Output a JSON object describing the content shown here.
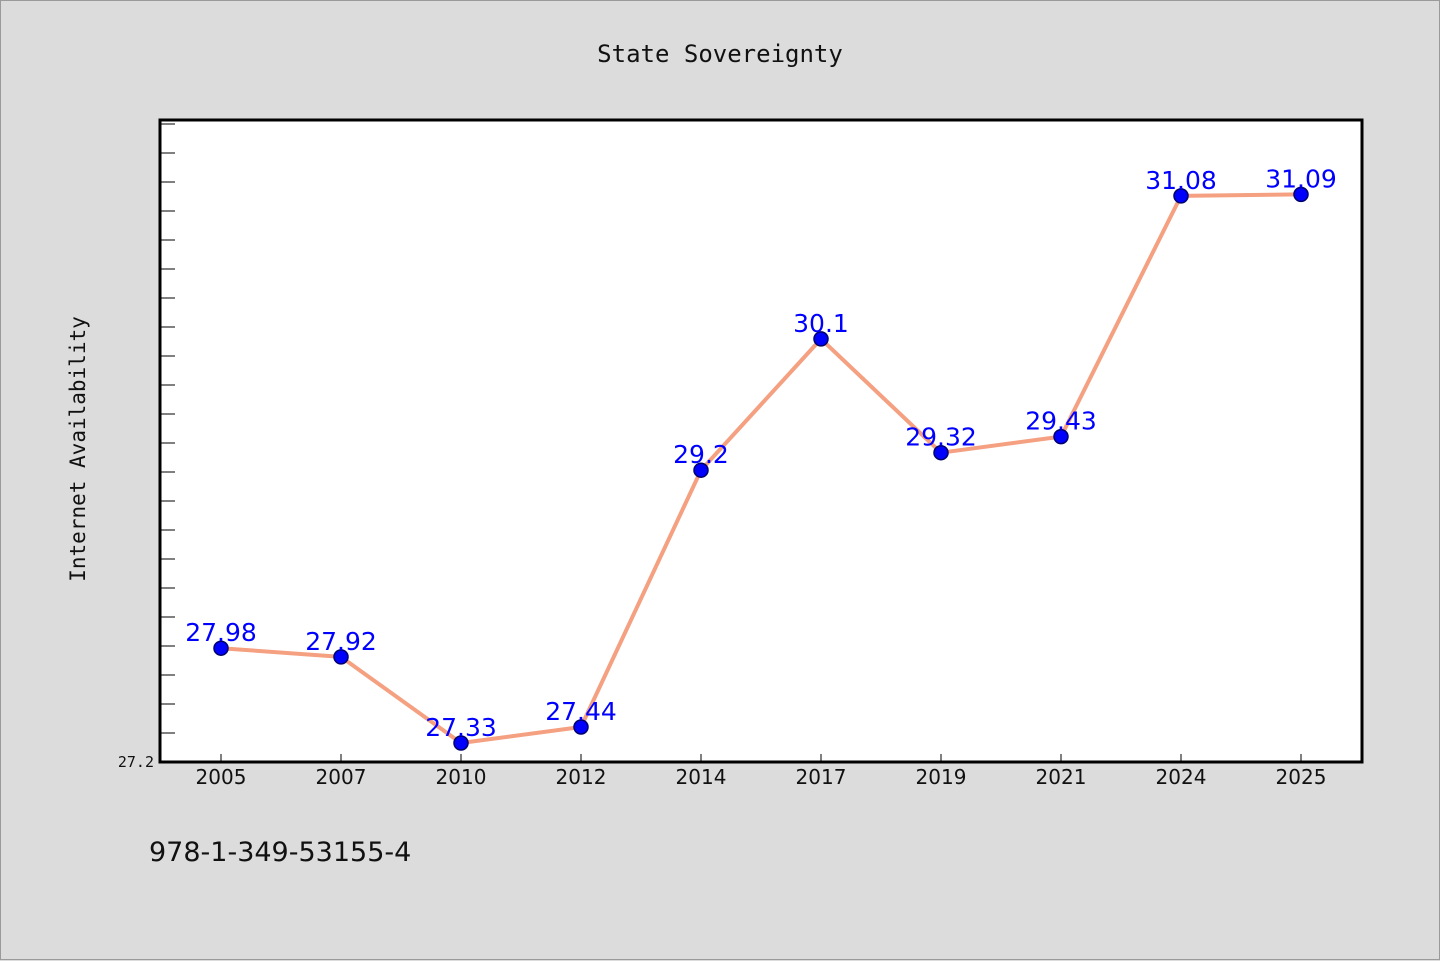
{
  "chart_data": {
    "type": "line",
    "title": "State Sovereignty",
    "xlabel": "",
    "ylabel": "Internet Availability",
    "categories": [
      "2005",
      "2007",
      "2010",
      "2012",
      "2014",
      "2017",
      "2019",
      "2021",
      "2024",
      "2025"
    ],
    "series": [
      {
        "values": [
          27.98,
          27.92,
          27.33,
          27.44,
          29.2,
          30.1,
          29.32,
          29.43,
          31.08,
          31.09
        ],
        "labels": [
          "27.98",
          "27.92",
          "27.33",
          "27.44",
          "29.2",
          "30.1",
          "29.32",
          "29.43",
          "31.08",
          "31.09"
        ]
      }
    ],
    "ylim": [
      27.2,
      31.6
    ],
    "y_tick_labels": [
      "27.2"
    ],
    "grid": false,
    "legend": "none",
    "colors": {
      "line": "#f4a081",
      "marker": "#0000ff",
      "label": "#0000ff",
      "plot_background": "#ffffff",
      "page_background": "#dcdcdc"
    }
  },
  "footer": {
    "isbn": "978-1-349-53155-4"
  }
}
